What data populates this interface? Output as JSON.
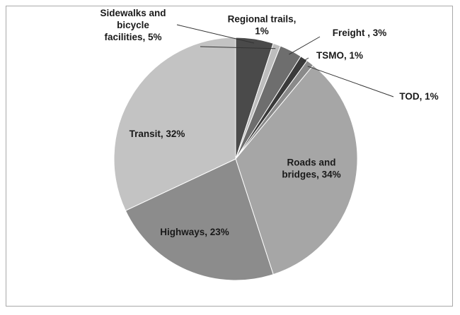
{
  "chart_data": {
    "type": "pie",
    "title": "",
    "slices": [
      {
        "label_lines": [
          "Sidewalks and",
          "bicycle",
          "facilities, 5%"
        ],
        "value": 5,
        "color": "#4a4a4a"
      },
      {
        "label_lines": [
          "Regional trails,",
          "1%"
        ],
        "value": 1,
        "color": "#bdbdbd"
      },
      {
        "label_lines": [
          "Freight , 3%"
        ],
        "value": 3,
        "color": "#6e6e6e"
      },
      {
        "label_lines": [
          "TSMO, 1%"
        ],
        "value": 1,
        "color": "#3a3a3a"
      },
      {
        "label_lines": [
          "TOD, 1%"
        ],
        "value": 1,
        "color": "#8a8a8a"
      },
      {
        "label_lines": [
          "Roads and",
          "bridges, 34%"
        ],
        "value": 34,
        "color": "#a6a6a6"
      },
      {
        "label_lines": [
          "Highways, 23%"
        ],
        "value": 23,
        "color": "#8c8c8c"
      },
      {
        "label_lines": [
          "Transit, 32%"
        ],
        "value": 32,
        "color": "#c3c3c3"
      }
    ],
    "legend": "none",
    "start_angle": "12 o'clock, clockwise"
  }
}
